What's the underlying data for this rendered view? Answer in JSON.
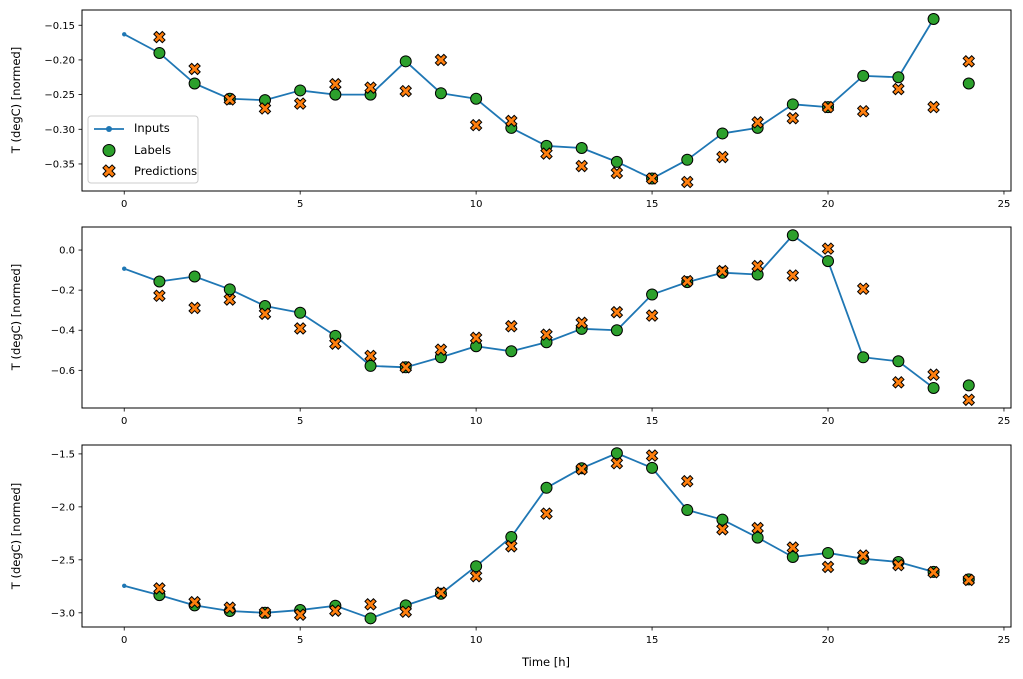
{
  "figure": {
    "background": "#ffffff",
    "xlabel": "Time [h]",
    "legend": {
      "entries": [
        "Inputs",
        "Labels",
        "Predictions"
      ],
      "colors": {
        "inputs": "#1f77b4",
        "labels": "#2ca02c",
        "predictions": "#ff7f0e"
      }
    }
  },
  "chart_data": [
    {
      "type": "line",
      "ylabel": "T (degC) [normed]",
      "xlabel": "",
      "xlim": [
        -1.2,
        25.2
      ],
      "ylim": [
        -0.389,
        -0.128
      ],
      "xticks": [
        0,
        5,
        10,
        15,
        20,
        25
      ],
      "yticks": [
        {
          "v": -0.15,
          "label": "−0.15"
        },
        {
          "v": -0.2,
          "label": "−0.20"
        },
        {
          "v": -0.25,
          "label": "−0.25"
        },
        {
          "v": -0.3,
          "label": "−0.30"
        },
        {
          "v": -0.35,
          "label": "−0.35"
        }
      ],
      "legend_visible": true,
      "series": [
        {
          "name": "Inputs",
          "type": "line",
          "marker": "dot",
          "color": "#1f77b4",
          "x": [
            0,
            1,
            2,
            3,
            4,
            5,
            6,
            7,
            8,
            9,
            10,
            11,
            12,
            13,
            14,
            15,
            16,
            17,
            18,
            19,
            20,
            21,
            22,
            23
          ],
          "y": [
            -0.163,
            -0.19,
            -0.234,
            -0.256,
            -0.258,
            -0.244,
            -0.25,
            -0.25,
            -0.202,
            -0.248,
            -0.256,
            -0.298,
            -0.324,
            -0.327,
            -0.347,
            -0.371,
            -0.344,
            -0.306,
            -0.298,
            -0.264,
            -0.268,
            -0.223,
            -0.225,
            -0.141
          ]
        },
        {
          "name": "Labels",
          "type": "scatter",
          "marker": "circle",
          "color": "#2ca02c",
          "edge": "#000000",
          "x": [
            1,
            2,
            3,
            4,
            5,
            6,
            7,
            8,
            9,
            10,
            11,
            12,
            13,
            14,
            15,
            16,
            17,
            18,
            19,
            20,
            21,
            22,
            23,
            24
          ],
          "y": [
            -0.19,
            -0.234,
            -0.256,
            -0.258,
            -0.244,
            -0.25,
            -0.25,
            -0.202,
            -0.248,
            -0.256,
            -0.298,
            -0.324,
            -0.327,
            -0.347,
            -0.371,
            -0.344,
            -0.306,
            -0.298,
            -0.264,
            -0.268,
            -0.223,
            -0.225,
            -0.141,
            -0.234
          ]
        },
        {
          "name": "Predictions",
          "type": "scatter",
          "marker": "X",
          "color": "#ff7f0e",
          "edge": "#000000",
          "x": [
            1,
            2,
            3,
            4,
            5,
            6,
            7,
            8,
            9,
            10,
            11,
            12,
            13,
            14,
            15,
            16,
            17,
            18,
            19,
            20,
            21,
            22,
            23,
            24
          ],
          "y": [
            -0.167,
            -0.213,
            -0.257,
            -0.27,
            -0.263,
            -0.235,
            -0.24,
            -0.245,
            -0.2,
            -0.294,
            -0.288,
            -0.335,
            -0.353,
            -0.363,
            -0.371,
            -0.376,
            -0.34,
            -0.29,
            -0.284,
            -0.268,
            -0.274,
            -0.242,
            -0.268,
            -0.202
          ]
        }
      ]
    },
    {
      "type": "line",
      "ylabel": "T (degC) [normed]",
      "xlabel": "",
      "xlim": [
        -1.2,
        25.2
      ],
      "ylim": [
        -0.788,
        0.115
      ],
      "xticks": [
        0,
        5,
        10,
        15,
        20,
        25
      ],
      "yticks": [
        {
          "v": 0.0,
          "label": "0.0"
        },
        {
          "v": -0.2,
          "label": "−0.2"
        },
        {
          "v": -0.4,
          "label": "−0.4"
        },
        {
          "v": -0.6,
          "label": "−0.6"
        }
      ],
      "legend_visible": false,
      "series": [
        {
          "name": "Inputs",
          "type": "line",
          "marker": "dot",
          "color": "#1f77b4",
          "x": [
            0,
            1,
            2,
            3,
            4,
            5,
            6,
            7,
            8,
            9,
            10,
            11,
            12,
            13,
            14,
            15,
            16,
            17,
            18,
            19,
            20,
            21,
            22,
            23
          ],
          "y": [
            -0.093,
            -0.157,
            -0.132,
            -0.196,
            -0.279,
            -0.313,
            -0.428,
            -0.578,
            -0.585,
            -0.535,
            -0.48,
            -0.505,
            -0.46,
            -0.393,
            -0.4,
            -0.222,
            -0.16,
            -0.113,
            -0.122,
            0.074,
            -0.055,
            -0.535,
            -0.555,
            -0.688
          ]
        },
        {
          "name": "Labels",
          "type": "scatter",
          "marker": "circle",
          "color": "#2ca02c",
          "edge": "#000000",
          "x": [
            1,
            2,
            3,
            4,
            5,
            6,
            7,
            8,
            9,
            10,
            11,
            12,
            13,
            14,
            15,
            16,
            17,
            18,
            19,
            20,
            21,
            22,
            23,
            24
          ],
          "y": [
            -0.157,
            -0.132,
            -0.196,
            -0.279,
            -0.313,
            -0.428,
            -0.578,
            -0.585,
            -0.535,
            -0.48,
            -0.505,
            -0.46,
            -0.393,
            -0.4,
            -0.222,
            -0.16,
            -0.113,
            -0.122,
            0.074,
            -0.055,
            -0.535,
            -0.555,
            -0.688,
            -0.675
          ]
        },
        {
          "name": "Predictions",
          "type": "scatter",
          "marker": "X",
          "color": "#ff7f0e",
          "edge": "#000000",
          "x": [
            1,
            2,
            3,
            4,
            5,
            6,
            7,
            8,
            9,
            10,
            11,
            12,
            13,
            14,
            15,
            16,
            17,
            18,
            19,
            20,
            21,
            22,
            23,
            24
          ],
          "y": [
            -0.228,
            -0.289,
            -0.247,
            -0.318,
            -0.391,
            -0.467,
            -0.528,
            -0.585,
            -0.497,
            -0.438,
            -0.38,
            -0.422,
            -0.363,
            -0.31,
            -0.327,
            -0.155,
            -0.105,
            -0.08,
            -0.127,
            0.007,
            -0.193,
            -0.66,
            -0.622,
            -0.747
          ]
        }
      ]
    },
    {
      "type": "line",
      "ylabel": "T (degC) [normed]",
      "xlabel": "Time [h]",
      "xlim": [
        -1.2,
        25.2
      ],
      "ylim": [
        -3.134,
        -1.416
      ],
      "xticks": [
        0,
        5,
        10,
        15,
        20,
        25
      ],
      "yticks": [
        {
          "v": -1.5,
          "label": "−1.5"
        },
        {
          "v": -2.0,
          "label": "−2.0"
        },
        {
          "v": -2.5,
          "label": "−2.5"
        },
        {
          "v": -3.0,
          "label": "−3.0"
        }
      ],
      "legend_visible": false,
      "series": [
        {
          "name": "Inputs",
          "type": "line",
          "marker": "dot",
          "color": "#1f77b4",
          "x": [
            0,
            1,
            2,
            3,
            4,
            5,
            6,
            7,
            8,
            9,
            10,
            11,
            12,
            13,
            14,
            15,
            16,
            17,
            18,
            19,
            20,
            21,
            22,
            23
          ],
          "y": [
            -2.745,
            -2.833,
            -2.93,
            -2.983,
            -3.0,
            -2.974,
            -2.933,
            -3.052,
            -2.93,
            -2.82,
            -2.56,
            -2.284,
            -1.82,
            -1.635,
            -1.494,
            -1.632,
            -2.03,
            -2.121,
            -2.29,
            -2.473,
            -2.435,
            -2.49,
            -2.52,
            -2.614
          ]
        },
        {
          "name": "Labels",
          "type": "scatter",
          "marker": "circle",
          "color": "#2ca02c",
          "edge": "#000000",
          "x": [
            1,
            2,
            3,
            4,
            5,
            6,
            7,
            8,
            9,
            10,
            11,
            12,
            13,
            14,
            15,
            16,
            17,
            18,
            19,
            20,
            21,
            22,
            23,
            24
          ],
          "y": [
            -2.833,
            -2.93,
            -2.983,
            -3.0,
            -2.974,
            -2.933,
            -3.052,
            -2.93,
            -2.82,
            -2.56,
            -2.284,
            -1.82,
            -1.635,
            -1.494,
            -1.632,
            -2.03,
            -2.121,
            -2.29,
            -2.473,
            -2.435,
            -2.49,
            -2.52,
            -2.614,
            -2.685
          ]
        },
        {
          "name": "Predictions",
          "type": "scatter",
          "marker": "X",
          "color": "#ff7f0e",
          "edge": "#000000",
          "x": [
            1,
            2,
            3,
            4,
            5,
            6,
            7,
            8,
            9,
            10,
            11,
            12,
            13,
            14,
            15,
            16,
            17,
            18,
            19,
            20,
            21,
            22,
            23,
            24
          ],
          "y": [
            -2.77,
            -2.9,
            -2.952,
            -3.0,
            -3.018,
            -2.98,
            -2.92,
            -2.99,
            -2.81,
            -2.654,
            -2.372,
            -2.064,
            -1.644,
            -1.588,
            -1.516,
            -1.758,
            -2.212,
            -2.2,
            -2.384,
            -2.567,
            -2.46,
            -2.55,
            -2.617,
            -2.69
          ]
        }
      ]
    }
  ]
}
